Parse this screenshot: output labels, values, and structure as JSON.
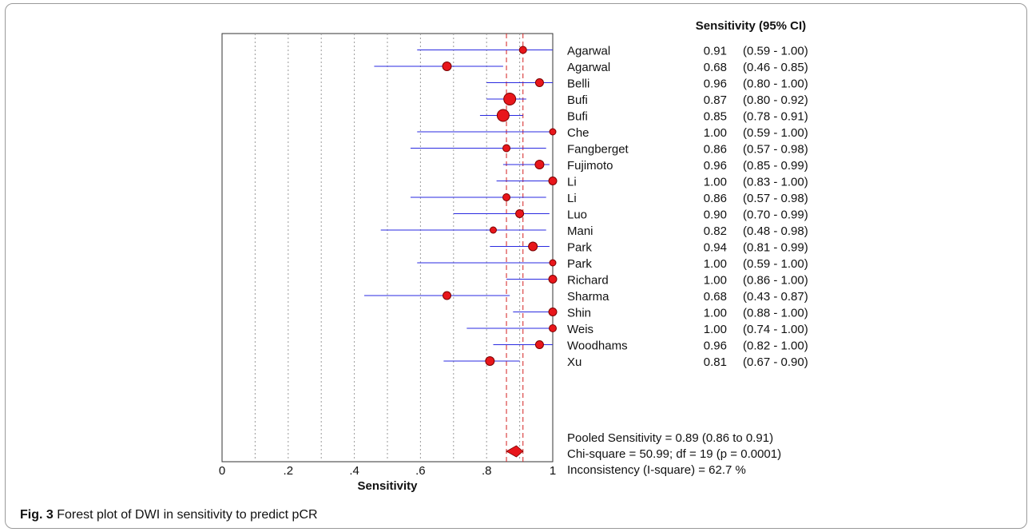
{
  "chart_data": {
    "type": "forest",
    "xlabel": "Sensitivity",
    "xlim": [
      0,
      1
    ],
    "xticks": [
      {
        "value": 0,
        "label": "0"
      },
      {
        "value": 0.2,
        "label": ".2"
      },
      {
        "value": 0.4,
        "label": ".4"
      },
      {
        "value": 0.6,
        "label": ".6"
      },
      {
        "value": 0.8,
        "label": ".8"
      },
      {
        "value": 1,
        "label": "1"
      }
    ],
    "grid_x": [
      0.1,
      0.2,
      0.3,
      0.4,
      0.5,
      0.6,
      0.7,
      0.8,
      0.9
    ],
    "column_header": "Sensitivity (95% CI)",
    "studies": [
      {
        "name": "Agarwal",
        "estimate": 0.91,
        "lower": 0.59,
        "upper": 1.0,
        "estimate_label": "0.91",
        "ci_label": "(0.59 - 1.00)",
        "weight": 7
      },
      {
        "name": "Agarwal",
        "estimate": 0.68,
        "lower": 0.46,
        "upper": 0.85,
        "estimate_label": "0.68",
        "ci_label": "(0.46 - 0.85)",
        "weight": 9
      },
      {
        "name": "Belli",
        "estimate": 0.96,
        "lower": 0.8,
        "upper": 1.0,
        "estimate_label": "0.96",
        "ci_label": "(0.80 - 1.00)",
        "weight": 8
      },
      {
        "name": "Bufi",
        "estimate": 0.87,
        "lower": 0.8,
        "upper": 0.92,
        "estimate_label": "0.87",
        "ci_label": "(0.80 - 0.92)",
        "weight": 13
      },
      {
        "name": "Bufi",
        "estimate": 0.85,
        "lower": 0.78,
        "upper": 0.91,
        "estimate_label": "0.85",
        "ci_label": "(0.78 - 0.91)",
        "weight": 13
      },
      {
        "name": "Che",
        "estimate": 1.0,
        "lower": 0.59,
        "upper": 1.0,
        "estimate_label": "1.00",
        "ci_label": "(0.59 - 1.00)",
        "weight": 6
      },
      {
        "name": "Fangberget",
        "estimate": 0.86,
        "lower": 0.57,
        "upper": 0.98,
        "estimate_label": "0.86",
        "ci_label": "(0.57 - 0.98)",
        "weight": 7
      },
      {
        "name": "Fujimoto",
        "estimate": 0.96,
        "lower": 0.85,
        "upper": 0.99,
        "estimate_label": "0.96",
        "ci_label": "(0.85 - 0.99)",
        "weight": 9
      },
      {
        "name": "Li",
        "estimate": 1.0,
        "lower": 0.83,
        "upper": 1.0,
        "estimate_label": "1.00",
        "ci_label": "(0.83 - 1.00)",
        "weight": 8
      },
      {
        "name": "Li",
        "estimate": 0.86,
        "lower": 0.57,
        "upper": 0.98,
        "estimate_label": "0.86",
        "ci_label": "(0.57 - 0.98)",
        "weight": 7
      },
      {
        "name": "Luo",
        "estimate": 0.9,
        "lower": 0.7,
        "upper": 0.99,
        "estimate_label": "0.90",
        "ci_label": "(0.70 - 0.99)",
        "weight": 8
      },
      {
        "name": "Mani",
        "estimate": 0.82,
        "lower": 0.48,
        "upper": 0.98,
        "estimate_label": "0.82",
        "ci_label": "(0.48 - 0.98)",
        "weight": 6
      },
      {
        "name": "Park",
        "estimate": 0.94,
        "lower": 0.81,
        "upper": 0.99,
        "estimate_label": "0.94",
        "ci_label": "(0.81 - 0.99)",
        "weight": 9
      },
      {
        "name": "Park",
        "estimate": 1.0,
        "lower": 0.59,
        "upper": 1.0,
        "estimate_label": "1.00",
        "ci_label": "(0.59 - 1.00)",
        "weight": 6
      },
      {
        "name": "Richard",
        "estimate": 1.0,
        "lower": 0.86,
        "upper": 1.0,
        "estimate_label": "1.00",
        "ci_label": "(0.86 - 1.00)",
        "weight": 8
      },
      {
        "name": "Sharma",
        "estimate": 0.68,
        "lower": 0.43,
        "upper": 0.87,
        "estimate_label": "0.68",
        "ci_label": "(0.43 - 0.87)",
        "weight": 8
      },
      {
        "name": "Shin",
        "estimate": 1.0,
        "lower": 0.88,
        "upper": 1.0,
        "estimate_label": "1.00",
        "ci_label": "(0.88 - 1.00)",
        "weight": 8
      },
      {
        "name": "Weis",
        "estimate": 1.0,
        "lower": 0.74,
        "upper": 1.0,
        "estimate_label": "1.00",
        "ci_label": "(0.74 - 1.00)",
        "weight": 7
      },
      {
        "name": "Woodhams",
        "estimate": 0.96,
        "lower": 0.82,
        "upper": 1.0,
        "estimate_label": "0.96",
        "ci_label": "(0.82 - 1.00)",
        "weight": 8
      },
      {
        "name": "Xu",
        "estimate": 0.81,
        "lower": 0.67,
        "upper": 0.9,
        "estimate_label": "0.81",
        "ci_label": "(0.67 - 0.90)",
        "weight": 9
      }
    ],
    "pooled": {
      "estimate": 0.89,
      "lower": 0.86,
      "upper": 0.91
    },
    "stats": [
      "Pooled Sensitivity = 0.89 (0.86 to 0.91)",
      "Chi-square = 50.99; df =  19 (p = 0.0001)",
      "Inconsistency (I-square) = 62.7 %"
    ],
    "colors": {
      "ci_line": "#2a2ae0",
      "point_fill": "#e8161b",
      "point_stroke": "#7a0000",
      "reference_line": "#d42020",
      "grid": "#9a9a9a"
    }
  },
  "caption": {
    "label": "Fig. 3",
    "text": "Forest plot of DWI in sensitivity to predict pCR"
  }
}
